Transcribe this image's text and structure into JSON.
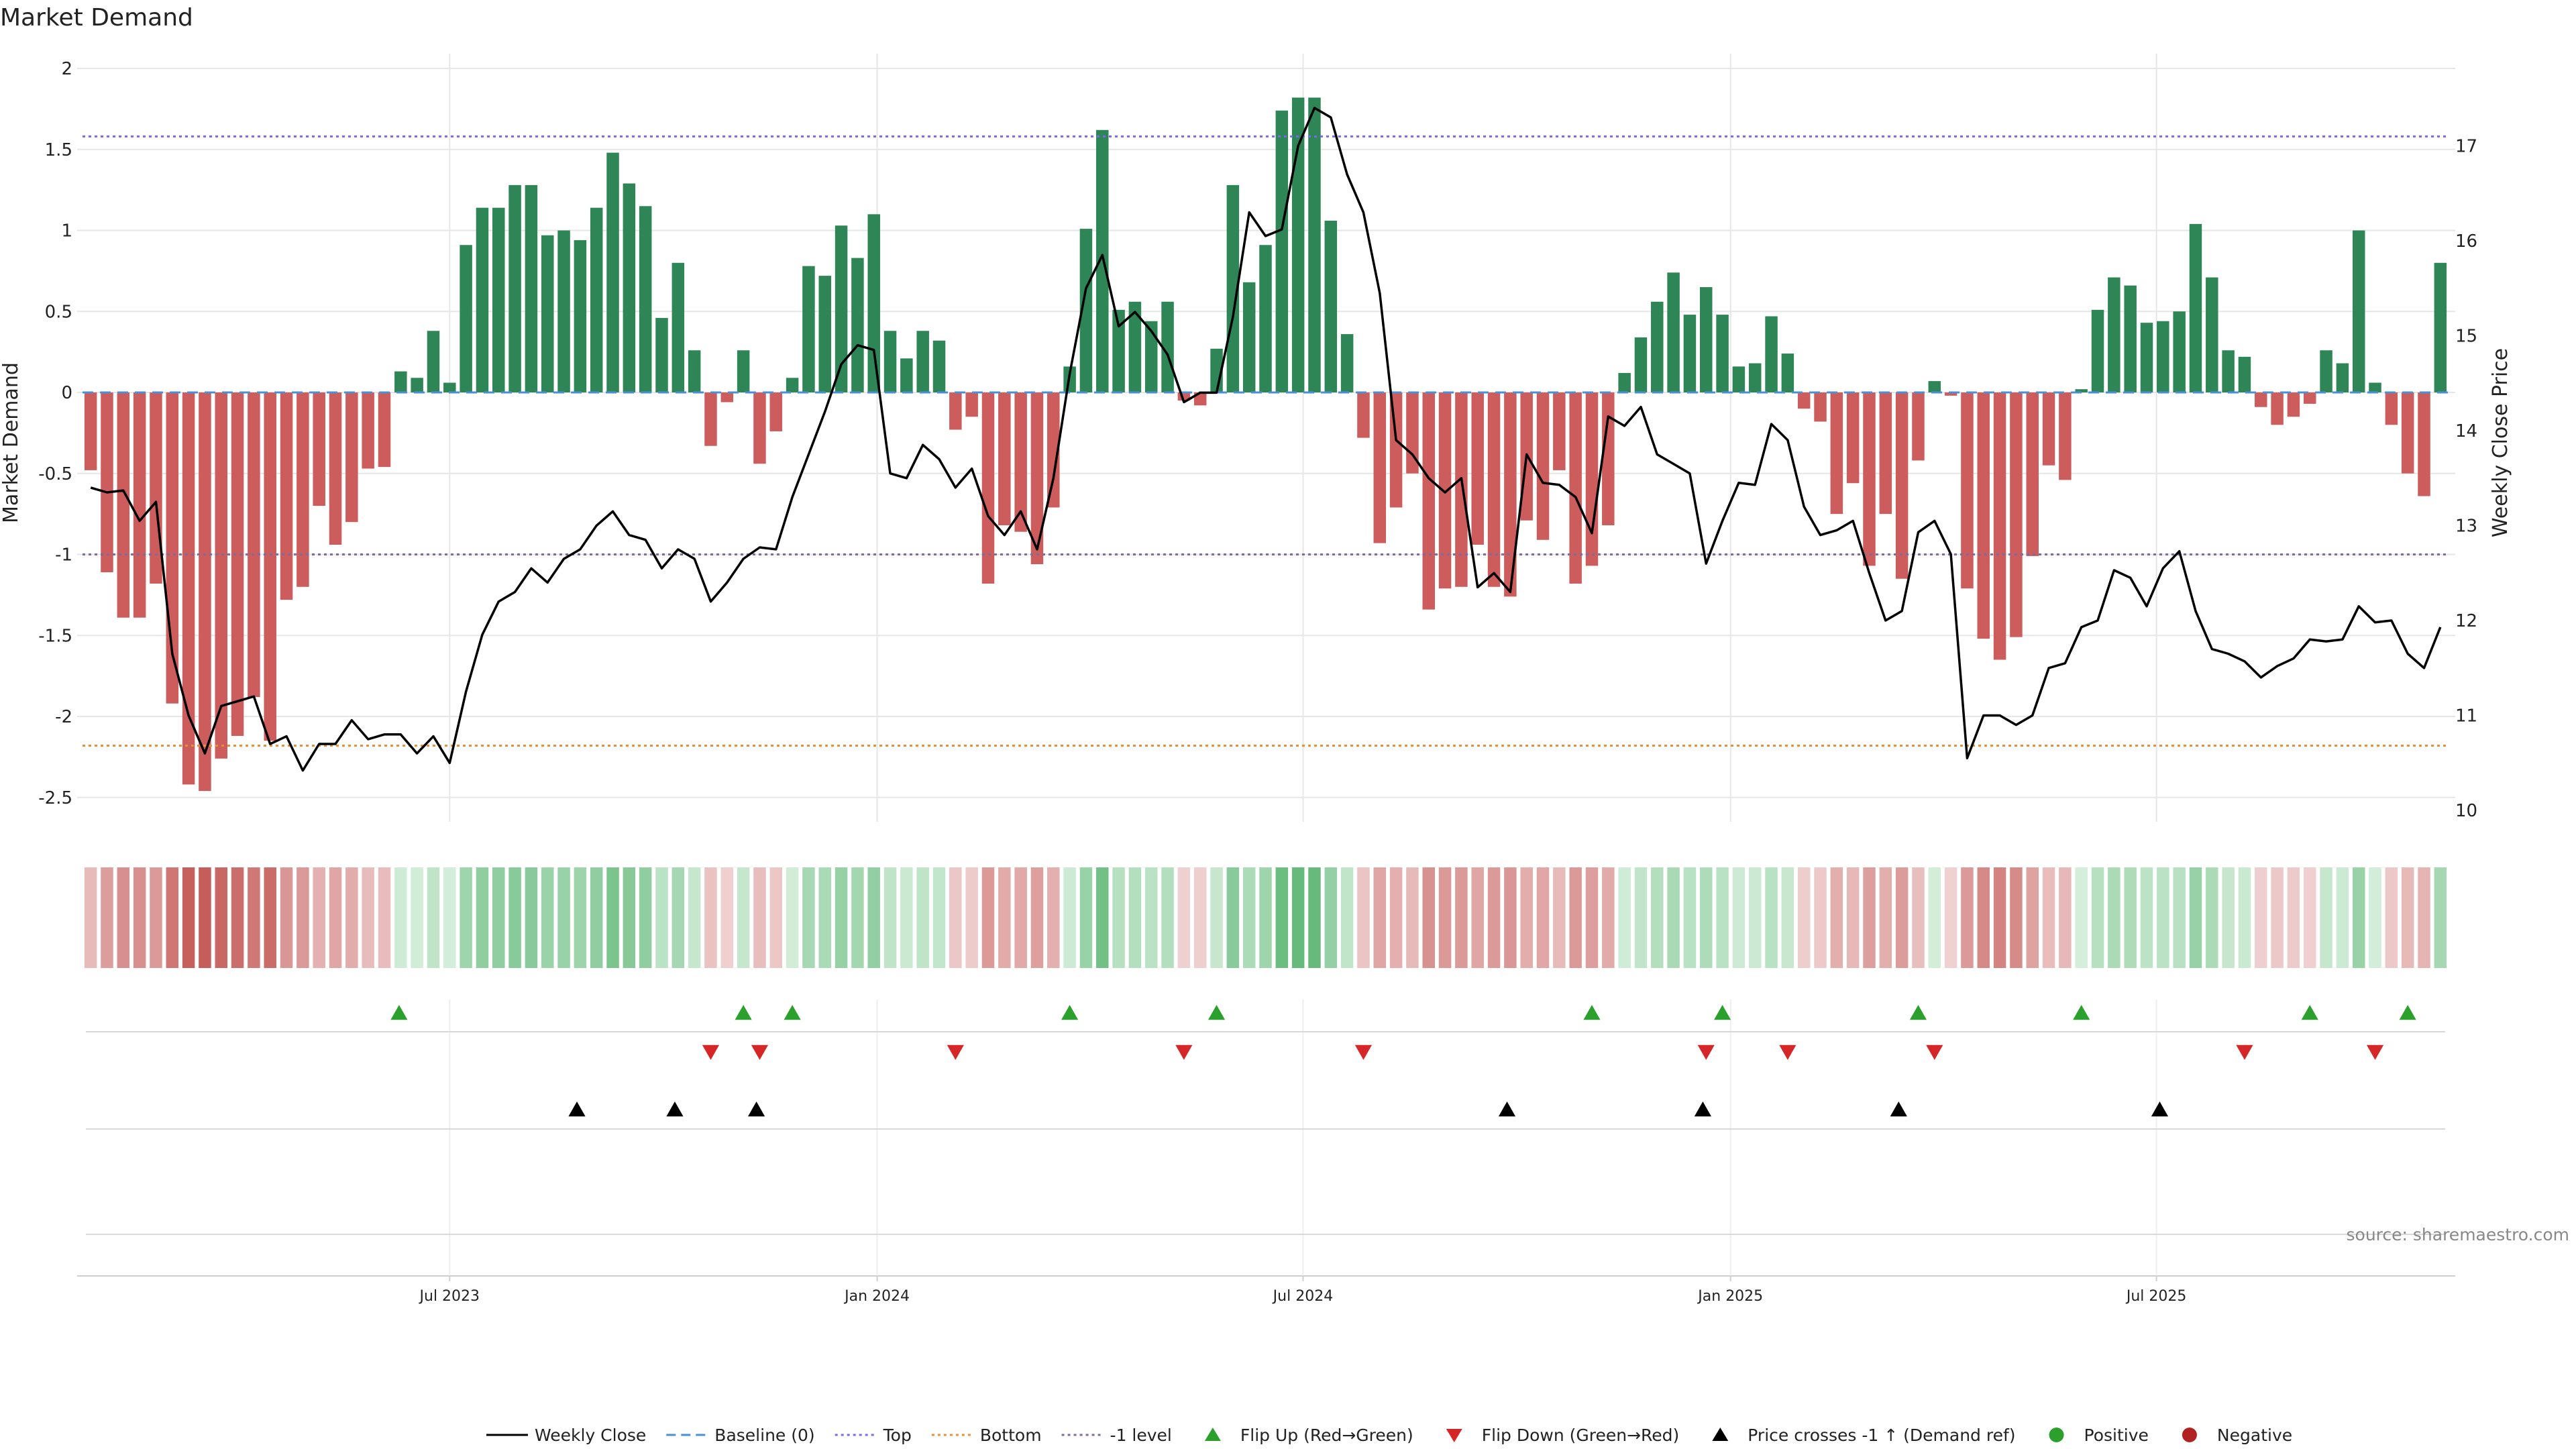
{
  "chart_data": {
    "type": "bar+line",
    "title": "Market Demand",
    "ylabel_left": "Market Demand",
    "ylabel_right": "Weekly Close Price",
    "ylim_left": [
      -2.7,
      2.05
    ],
    "ylim_right": [
      9.85,
      17.75
    ],
    "yticks_left": [
      {
        "value": 2,
        "label": "2"
      },
      {
        "value": 1.5,
        "label": "1.5"
      },
      {
        "value": 1,
        "label": "1"
      },
      {
        "value": 0.5,
        "label": "0.5"
      },
      {
        "value": 0,
        "label": "0"
      },
      {
        "value": -0.5,
        "label": "-0.5"
      },
      {
        "value": -1,
        "label": "-1"
      },
      {
        "value": -1.5,
        "label": "-1.5"
      },
      {
        "value": -2,
        "label": "-2"
      },
      {
        "value": -2.5,
        "label": "-2.5"
      }
    ],
    "yticks_right": [
      {
        "value": 17,
        "label": "17"
      },
      {
        "value": 16,
        "label": "16"
      },
      {
        "value": 15,
        "label": "15"
      },
      {
        "value": 14,
        "label": "14"
      },
      {
        "value": 13,
        "label": "13"
      },
      {
        "value": 12,
        "label": "12"
      },
      {
        "value": 11,
        "label": "11"
      },
      {
        "value": 10,
        "label": "10"
      }
    ],
    "x_range_weeks": [
      0,
      144
    ],
    "x_ticks": [
      {
        "week": 22.5,
        "label": "Jul 2023"
      },
      {
        "week": 48.7,
        "label": "Jan 2024"
      },
      {
        "week": 74.8,
        "label": "Jul 2024"
      },
      {
        "week": 101.0,
        "label": "Jan 2025"
      },
      {
        "week": 127.1,
        "label": "Jul 2025"
      }
    ],
    "reference_lines": [
      {
        "name": "Top",
        "value": 1.58,
        "color": "#7b68ee"
      },
      {
        "name": "Bottom",
        "value": -2.18,
        "color": "#e69138"
      },
      {
        "name": "-1 level",
        "value": -1.0,
        "color": "#7f6c9c"
      }
    ],
    "demand": [
      -0.48,
      -1.11,
      -1.39,
      -1.39,
      -1.18,
      -1.92,
      -2.42,
      -2.46,
      -2.26,
      -2.12,
      -1.88,
      -2.15,
      -1.28,
      -1.2,
      -0.7,
      -0.94,
      -0.8,
      -0.47,
      -0.46,
      0.13,
      0.09,
      0.38,
      0.06,
      0.91,
      1.14,
      1.14,
      1.28,
      1.28,
      0.97,
      1.0,
      0.94,
      1.14,
      1.48,
      1.29,
      1.15,
      0.46,
      0.8,
      0.26,
      -0.33,
      -0.06,
      0.26,
      -0.44,
      -0.24,
      0.09,
      0.78,
      0.72,
      1.03,
      0.83,
      1.1,
      0.38,
      0.21,
      0.38,
      0.32,
      -0.23,
      -0.15,
      -1.18,
      -0.82,
      -0.86,
      -1.06,
      -0.71,
      0.16,
      1.01,
      1.62,
      0.51,
      0.56,
      0.44,
      0.56,
      -0.05,
      -0.08,
      0.27,
      1.28,
      0.68,
      0.91,
      1.74,
      1.82,
      1.82,
      1.06,
      0.36,
      -0.28,
      -0.93,
      -0.71,
      -0.5,
      -1.34,
      -1.21,
      -1.2,
      -0.94,
      -1.2,
      -1.26,
      -0.79,
      -0.91,
      -0.48,
      -1.18,
      -1.07,
      -0.82,
      0.12,
      0.34,
      0.56,
      0.74,
      0.48,
      0.65,
      0.48,
      0.16,
      0.18,
      0.47,
      0.24,
      -0.1,
      -0.18,
      -0.75,
      -0.56,
      -1.07,
      -0.75,
      -1.15,
      -0.42,
      0.07,
      -0.02,
      -1.21,
      -1.52,
      -1.65,
      -1.51,
      -1.01,
      -0.45,
      -0.54,
      0.02,
      0.51,
      0.71,
      0.66,
      0.43,
      0.44,
      0.5,
      1.04,
      0.71,
      0.26,
      0.22,
      -0.09,
      -0.2,
      -0.15,
      -0.07,
      0.26,
      0.18,
      1.0,
      0.06,
      -0.2,
      -0.5,
      -0.64,
      0.8
    ],
    "weekly_close": [
      13.4,
      13.35,
      13.37,
      13.05,
      13.25,
      11.65,
      11.0,
      10.6,
      11.1,
      11.15,
      11.2,
      10.7,
      10.78,
      10.42,
      10.7,
      10.7,
      10.95,
      10.75,
      10.8,
      10.8,
      10.6,
      10.78,
      10.5,
      11.25,
      11.85,
      12.2,
      12.3,
      12.55,
      12.4,
      12.65,
      12.75,
      13.0,
      13.15,
      12.9,
      12.85,
      12.55,
      12.75,
      12.65,
      12.2,
      12.4,
      12.65,
      12.77,
      12.75,
      13.3,
      13.75,
      14.2,
      14.7,
      14.9,
      14.85,
      13.55,
      13.5,
      13.85,
      13.7,
      13.4,
      13.6,
      13.1,
      12.9,
      13.15,
      12.75,
      13.5,
      14.6,
      15.5,
      15.85,
      15.1,
      15.25,
      15.05,
      14.8,
      14.3,
      14.4,
      14.4,
      15.2,
      16.3,
      16.05,
      16.12,
      17.0,
      17.4,
      17.3,
      16.7,
      16.3,
      15.45,
      13.9,
      13.75,
      13.5,
      13.35,
      13.5,
      12.35,
      12.5,
      12.3,
      13.75,
      13.45,
      13.43,
      13.3,
      12.92,
      14.15,
      14.05,
      14.25,
      13.75,
      13.65,
      13.55,
      12.6,
      13.05,
      13.45,
      13.43,
      14.07,
      13.9,
      13.2,
      12.9,
      12.95,
      13.05,
      12.5,
      12.0,
      12.1,
      12.93,
      13.05,
      12.7,
      10.55,
      11.0,
      11.0,
      10.9,
      11.0,
      11.5,
      11.55,
      11.93,
      12.0,
      12.53,
      12.45,
      12.15,
      12.55,
      12.73,
      12.1,
      11.7,
      11.65,
      11.57,
      11.4,
      11.52,
      11.6,
      11.8,
      11.78,
      11.8,
      12.15,
      11.98,
      12.0,
      11.65,
      11.5,
      11.93
    ],
    "flip_up_weeks": [
      19.4,
      40.5,
      43.5,
      60.5,
      69.5,
      92.5,
      100.5,
      112.5,
      122.5,
      136.5,
      142.5
    ],
    "flip_down_weeks": [
      38.5,
      41.5,
      53.5,
      67.5,
      78.5,
      99.5,
      104.5,
      113.5,
      132.5,
      140.5
    ],
    "price_cross_weeks": [
      30.3,
      36.3,
      41.3,
      87.3,
      99.3,
      111.3,
      127.3
    ],
    "colors": {
      "positive": "#2e8555",
      "negative": "#cd5c5c",
      "price_line": "#000000",
      "flip_up": "#2ca02c",
      "flip_down": "#d62728",
      "cross_marker": "#000000",
      "positive_dot": "#2ca02c",
      "negative_dot": "#b22222",
      "baseline": "#4a90d9",
      "grid": "#e6e6e6"
    },
    "legend": [
      {
        "key": "weekly-close",
        "label": "Weekly Close",
        "symbol": "line-solid",
        "color": "#000000"
      },
      {
        "key": "baseline",
        "label": "Baseline (0)",
        "symbol": "line-dashed",
        "color": "#4a90d9"
      },
      {
        "key": "top",
        "label": "Top",
        "symbol": "line-dotted",
        "color": "#7b68ee"
      },
      {
        "key": "bottom",
        "label": "Bottom",
        "symbol": "line-dotted",
        "color": "#e69138"
      },
      {
        "key": "minus-one-level",
        "label": "-1 level",
        "symbol": "line-dotted",
        "color": "#7f6c9c"
      },
      {
        "key": "flip-up",
        "label": "Flip Up (Red→Green)",
        "symbol": "triangle-up",
        "color": "#2ca02c"
      },
      {
        "key": "flip-down",
        "label": "Flip Down (Green→Red)",
        "symbol": "triangle-down",
        "color": "#d62728"
      },
      {
        "key": "price-cross",
        "label": "Price crosses -1 ↑ (Demand ref)",
        "symbol": "triangle-up",
        "color": "#000000"
      },
      {
        "key": "positive",
        "label": "Positive",
        "symbol": "dot",
        "color": "#2ca02c"
      },
      {
        "key": "negative",
        "label": "Negative",
        "symbol": "dot",
        "color": "#b22222"
      }
    ],
    "source": "source: sharemaestro.com"
  }
}
